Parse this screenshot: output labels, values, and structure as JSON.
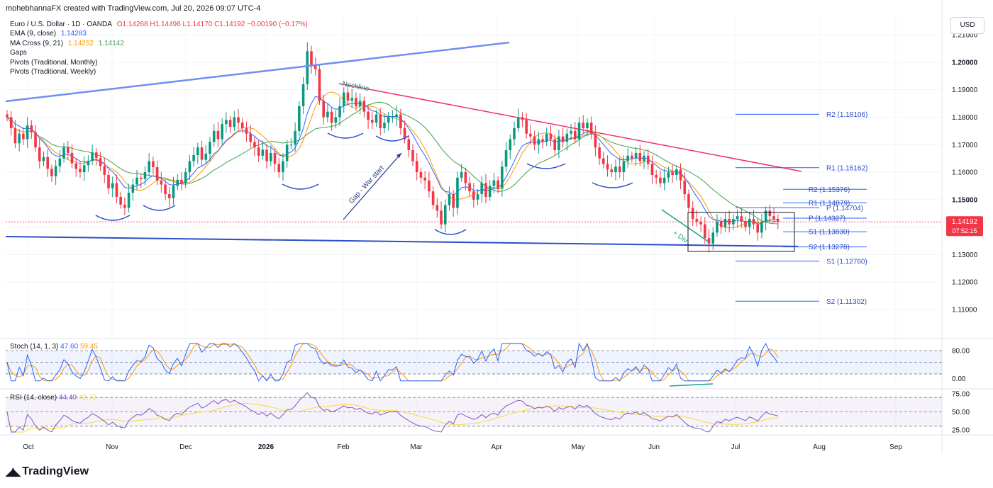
{
  "header": {
    "text": "mohebhannaFX created with TradingView.com, Jul 20, 2026 09:07 UTC-4"
  },
  "legend": {
    "symbol": "Euro / U.S. Dollar · 1D · OANDA",
    "ohlc": "O1.14268  H1.14496  L1.14170  C1.14192  −0.00190 (−0.17%)",
    "ema_label": "EMA (9, close)",
    "ema_value": "1.14283",
    "ma_label": "MA Cross (9, 21)",
    "ma_value1": "1.14252",
    "ma_value2": "1.14142",
    "gaps": "Gaps",
    "pivots_monthly": "Pivots (Traditional, Monthly)",
    "pivots_weekly": "Pivots (Traditional, Weekly)"
  },
  "currency_button": "USD",
  "colors": {
    "up": "#089981",
    "down": "#f23645",
    "ema": "#2962ff",
    "ma_fast": "#ff9800",
    "ma_slow": "#43a047",
    "trend_blue": "#6f8ef5",
    "neckline": "#f0306b",
    "support": "#2c4ec9",
    "pivot": "#2962ff",
    "stoch_k": "#2962ff",
    "stoch_d": "#ff9800",
    "rsi": "#7e57c2",
    "rsi_ma": "#fdd835"
  },
  "chart_data": {
    "type": "candlestick",
    "y_axis": {
      "ticks": [
        "1.21000",
        "1.20000",
        "1.19000",
        "1.18000",
        "1.17000",
        "1.16000",
        "1.15000",
        "1.14000",
        "1.13000",
        "1.12000",
        "1.11000"
      ]
    },
    "x_axis": {
      "ticks": [
        "Oct",
        "Nov",
        "Dec",
        "2026",
        "Feb",
        "Mar",
        "Apr",
        "May",
        "Jun",
        "Jul",
        "Aug",
        "Sep"
      ]
    },
    "last_price": "1.14192",
    "countdown": "07:52:15",
    "closes": [
      1.18,
      1.176,
      1.1705,
      1.174,
      1.172,
      1.177,
      1.1745,
      1.169,
      1.164,
      1.1655,
      1.1612,
      1.1585,
      1.1622,
      1.165,
      1.169,
      1.167,
      1.1632,
      1.1612,
      1.16,
      1.1625,
      1.1641,
      1.1672,
      1.1651,
      1.1622,
      1.159,
      1.1541,
      1.156,
      1.151,
      1.1482,
      1.147,
      1.1525,
      1.1555,
      1.158,
      1.1575,
      1.16,
      1.164,
      1.1618,
      1.157,
      1.1555,
      1.152,
      1.1505,
      1.155,
      1.1572,
      1.156,
      1.16,
      1.164,
      1.1662,
      1.169,
      1.1645,
      1.1667,
      1.171,
      1.175,
      1.172,
      1.1775,
      1.179,
      1.1765,
      1.18,
      1.178,
      1.176,
      1.174,
      1.171,
      1.169,
      1.166,
      1.1682,
      1.164,
      1.167,
      1.163,
      1.16,
      1.164,
      1.17,
      1.17,
      1.175,
      1.184,
      1.192,
      1.204,
      1.199,
      1.1975,
      1.186,
      1.18,
      1.182,
      1.178,
      1.18,
      1.184,
      1.189,
      1.186,
      1.187,
      1.184,
      1.186,
      1.182,
      1.179,
      1.178,
      1.181,
      1.176,
      1.178,
      1.18,
      1.18,
      1.181,
      1.176,
      1.172,
      1.168,
      1.164,
      1.16,
      1.158,
      1.157,
      1.153,
      1.148,
      1.146,
      1.141,
      1.148,
      1.152,
      1.147,
      1.158,
      1.16,
      1.156,
      1.153,
      1.15,
      1.152,
      1.156,
      1.151,
      1.155,
      1.157,
      1.154,
      1.162,
      1.168,
      1.172,
      1.176,
      1.18,
      1.179,
      1.174,
      1.173,
      1.17,
      1.172,
      1.171,
      1.174,
      1.172,
      1.168,
      1.173,
      1.171,
      1.174,
      1.175,
      1.172,
      1.178,
      1.176,
      1.178,
      1.174,
      1.169,
      1.165,
      1.163,
      1.161,
      1.16,
      1.162,
      1.16,
      1.164,
      1.166,
      1.165,
      1.167,
      1.164,
      1.166,
      1.163,
      1.159,
      1.158,
      1.156,
      1.158,
      1.16,
      1.159,
      1.161,
      1.157,
      1.152,
      1.147,
      1.143,
      1.142,
      1.141,
      1.136,
      1.134,
      1.138,
      1.142,
      1.14,
      1.143,
      1.141,
      1.143,
      1.144,
      1.142,
      1.14,
      1.143,
      1.141,
      1.138,
      1.142,
      1.146,
      1.144,
      1.143,
      1.1419
    ],
    "series_last": {
      "ema9": "1.14283",
      "ma_fast": "1.14252",
      "ma_slow": "1.14142"
    },
    "pivot_lines": [
      {
        "label": "R2 (1.18106)",
        "value": 1.18106,
        "group": "monthly"
      },
      {
        "label": "R1 (1.16162)",
        "value": 1.16162,
        "group": "monthly"
      },
      {
        "label": "R2 (1.15376)",
        "value": 1.15376,
        "group": "weekly"
      },
      {
        "label": "R1 (1.14879)",
        "value": 1.14879,
        "group": "weekly"
      },
      {
        "label": "P (1.14704)",
        "value": 1.14704,
        "group": "monthly"
      },
      {
        "label": "P (1.14327)",
        "value": 1.14327,
        "group": "weekly"
      },
      {
        "label": "S1 (1.13830)",
        "value": 1.1383,
        "group": "weekly"
      },
      {
        "label": "S2 (1.13278)",
        "value": 1.13278,
        "group": "weekly"
      },
      {
        "label": "S1 (1.12760)",
        "value": 1.1276,
        "group": "monthly"
      },
      {
        "label": "S2 (1.11302)",
        "value": 1.11302,
        "group": "monthly"
      }
    ],
    "annotations": {
      "neckline": "Neckline",
      "gap": "Gap - War start",
      "div": "+ Div"
    },
    "stoch": {
      "label": "Stoch (14, 1, 3)",
      "k": "47.60",
      "d": "59.45",
      "ticks": [
        "80.00",
        "0.00"
      ],
      "levels": [
        80,
        50,
        20
      ]
    },
    "rsi": {
      "label": "RSI (14, close)",
      "value": "44.40",
      "ma": "42.73",
      "ticks": [
        "75.00",
        "50.00",
        "25.00"
      ],
      "levels": [
        70,
        50,
        30
      ]
    }
  },
  "branding": {
    "name": "TradingView"
  }
}
